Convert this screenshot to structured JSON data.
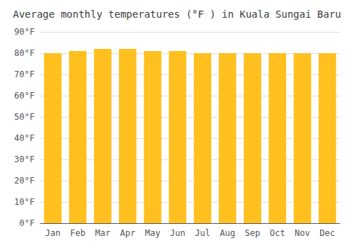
{
  "chart_data": {
    "type": "bar",
    "title": "Average monthly temperatures (°F ) in Kuala Sungai Baru",
    "categories": [
      "Jan",
      "Feb",
      "Mar",
      "Apr",
      "May",
      "Jun",
      "Jul",
      "Aug",
      "Sep",
      "Oct",
      "Nov",
      "Dec"
    ],
    "values": [
      80,
      81,
      82,
      82,
      81,
      81,
      80,
      80,
      80,
      80,
      80,
      80
    ],
    "color": "#FFC020",
    "ylim": [
      0,
      90
    ],
    "yticks": [
      {
        "value": 0,
        "label": "0°F"
      },
      {
        "value": 10,
        "label": "10°F"
      },
      {
        "value": 20,
        "label": "20°F"
      },
      {
        "value": 30,
        "label": "30°F"
      },
      {
        "value": 40,
        "label": "40°F"
      },
      {
        "value": 50,
        "label": "50°F"
      },
      {
        "value": 60,
        "label": "60°F"
      },
      {
        "value": 70,
        "label": "70°F"
      },
      {
        "value": 80,
        "label": "80°F"
      },
      {
        "value": 90,
        "label": "90°F"
      }
    ],
    "grid": true
  }
}
